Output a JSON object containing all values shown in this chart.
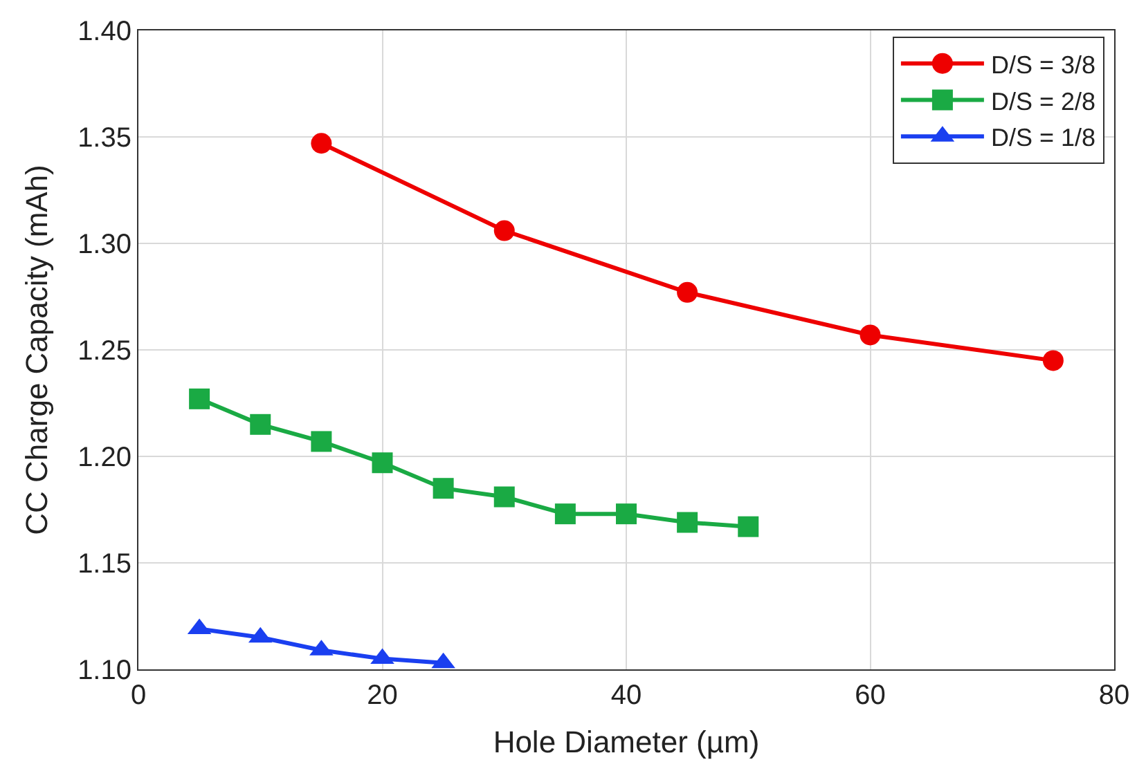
{
  "chart_data": {
    "type": "line",
    "xlabel": "Hole Diameter (µm)",
    "ylabel": "CC Charge Capacity (mAh)",
    "xlim": [
      0,
      80
    ],
    "xticks": [
      0,
      20,
      40,
      60,
      80
    ],
    "ylim": [
      1.1,
      1.4
    ],
    "yticks": [
      {
        "value": 1.1,
        "label": "1.10"
      },
      {
        "value": 1.15,
        "label": "1.15"
      },
      {
        "value": 1.2,
        "label": "1.20"
      },
      {
        "value": 1.25,
        "label": "1.25"
      },
      {
        "value": 1.3,
        "label": "1.30"
      },
      {
        "value": 1.35,
        "label": "1.35"
      },
      {
        "value": 1.4,
        "label": "1.40"
      }
    ],
    "grid": true,
    "legend": "top right",
    "series": [
      {
        "name": "D/S = 3/8",
        "color": "#ee0000",
        "marker": "circle",
        "x": [
          15,
          30,
          45,
          60,
          75
        ],
        "values": [
          1.347,
          1.306,
          1.277,
          1.257,
          1.245
        ]
      },
      {
        "name": "D/S = 2/8",
        "color": "#1aaa44",
        "marker": "square",
        "x": [
          5,
          10,
          15,
          20,
          25,
          30,
          35,
          40,
          45,
          50
        ],
        "values": [
          1.227,
          1.215,
          1.207,
          1.197,
          1.185,
          1.181,
          1.173,
          1.173,
          1.169,
          1.167
        ]
      },
      {
        "name": "D/S = 1/8",
        "color": "#1a3ff0",
        "marker": "triangle",
        "x": [
          5,
          10,
          15,
          20,
          25
        ],
        "values": [
          1.119,
          1.115,
          1.109,
          1.105,
          1.103
        ]
      }
    ]
  }
}
